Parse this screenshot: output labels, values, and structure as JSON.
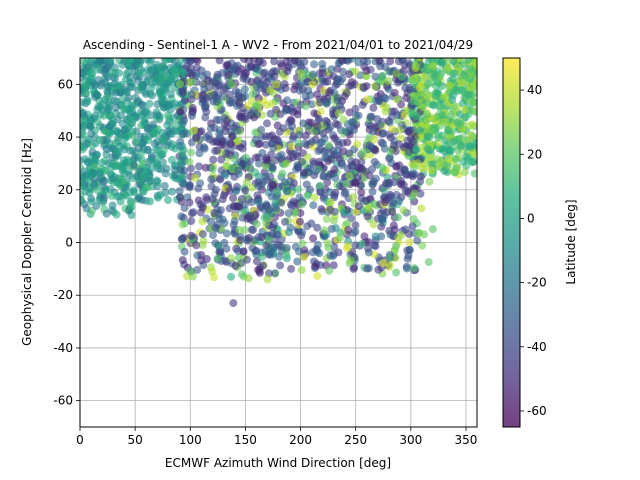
{
  "chart_data": {
    "type": "scatter",
    "title": "Ascending - Sentinel-1 A - WV2 - From 2021/04/01 to 2021/04/29",
    "xlabel": "ECMWF Azimuth Wind Direction [deg]",
    "ylabel": "Geophysical Doppler Centroid [Hz]",
    "xlim": [
      0,
      360
    ],
    "ylim": [
      -70,
      70
    ],
    "xticks": [
      0,
      50,
      100,
      150,
      200,
      250,
      300,
      350
    ],
    "yticks": [
      -60,
      -40,
      -20,
      0,
      20,
      40,
      60
    ],
    "grid": true,
    "point_alpha": 0.6,
    "colorbar": {
      "label": "Latitude [deg]",
      "range": [
        -65,
        50
      ],
      "ticks": [
        -60,
        -40,
        -20,
        0,
        20,
        40
      ],
      "colormap": "viridis"
    },
    "point_groups": [
      {
        "x_range": [
          0,
          95
        ],
        "y_range": [
          15,
          70
        ],
        "lat_range": [
          -20,
          10
        ],
        "count": 650
      },
      {
        "x_range": [
          0,
          60
        ],
        "y_range": [
          10,
          30
        ],
        "lat_range": [
          -30,
          20
        ],
        "count": 80
      },
      {
        "x_range": [
          300,
          360
        ],
        "y_range": [
          25,
          70
        ],
        "lat_range": [
          0,
          40
        ],
        "count": 450
      },
      {
        "x_range": [
          90,
          310
        ],
        "y_range": [
          -12,
          70
        ],
        "lat_range": [
          -55,
          -25
        ],
        "count": 1100
      },
      {
        "x_range": [
          90,
          320
        ],
        "y_range": [
          -14,
          65
        ],
        "lat_range": [
          15,
          45
        ],
        "count": 300
      },
      {
        "x_range": [
          120,
          290
        ],
        "y_range": [
          -12,
          30
        ],
        "lat_range": [
          -50,
          45
        ],
        "count": 150
      }
    ],
    "outliers": [
      {
        "x": 139,
        "y": -23,
        "lat": -45
      },
      {
        "x": 137,
        "y": -13,
        "lat": 5
      },
      {
        "x": 170,
        "y": -14,
        "lat": 35
      },
      {
        "x": 120,
        "y": -11,
        "lat": 38
      },
      {
        "x": 248,
        "y": -10,
        "lat": -48
      }
    ]
  }
}
